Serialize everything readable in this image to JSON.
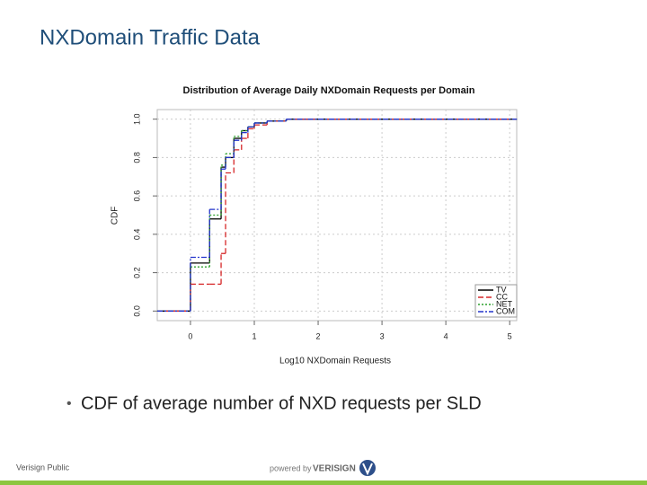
{
  "slide_title": "NXDomain Traffic Data",
  "bullet": "CDF of average number of NXD requests per SLD",
  "footer_left": "Verisign Public",
  "footer_powered": "powered by",
  "footer_brand": "VERISIGN",
  "chart_data": {
    "type": "step",
    "title": "Distribution of Average Daily NXDomain Requests per Domain",
    "x_label": "Log10 NXDomain Requests",
    "y_label": "CDF",
    "x": [
      -0.52,
      0,
      0.3,
      0.48,
      0.55,
      0.68,
      0.8,
      0.9,
      1.0,
      1.2,
      1.5,
      2,
      5.11
    ],
    "series": [
      {
        "name": "TV",
        "color": "#000000",
        "dash": "solid",
        "values": [
          0,
          0.25,
          0.48,
          0.75,
          0.8,
          0.9,
          0.94,
          0.96,
          0.98,
          0.99,
          1,
          1,
          1
        ]
      },
      {
        "name": "CC",
        "color": "#d62728",
        "dash": "dashed",
        "values": [
          0,
          0.14,
          0.14,
          0.3,
          0.72,
          0.84,
          0.9,
          0.95,
          0.97,
          0.99,
          1,
          1,
          1
        ]
      },
      {
        "name": "NET",
        "color": "#2ca02c",
        "dash": "dotted",
        "values": [
          0,
          0.23,
          0.5,
          0.76,
          0.82,
          0.91,
          0.94,
          0.96,
          0.98,
          0.99,
          1,
          1,
          1
        ]
      },
      {
        "name": "COM",
        "color": "#2233cc",
        "dash": "dashdot",
        "values": [
          0,
          0.28,
          0.53,
          0.74,
          0.8,
          0.89,
          0.93,
          0.96,
          0.98,
          0.99,
          1,
          1,
          1
        ]
      }
    ],
    "xlim": [
      -0.52,
      5.11
    ],
    "ylim": [
      -0.05,
      1.05
    ],
    "xticks": [
      0,
      1,
      2,
      3,
      4,
      5
    ],
    "yticks": [
      {
        "value": 0,
        "label": "0.0"
      },
      {
        "value": 0.2,
        "label": "0.2"
      },
      {
        "value": 0.4,
        "label": "0.4"
      },
      {
        "value": 0.6,
        "label": "0.6"
      },
      {
        "value": 0.8,
        "label": "0.8"
      },
      {
        "value": 1,
        "label": "1.0"
      }
    ],
    "grid": true,
    "legend": "bottom-right"
  }
}
